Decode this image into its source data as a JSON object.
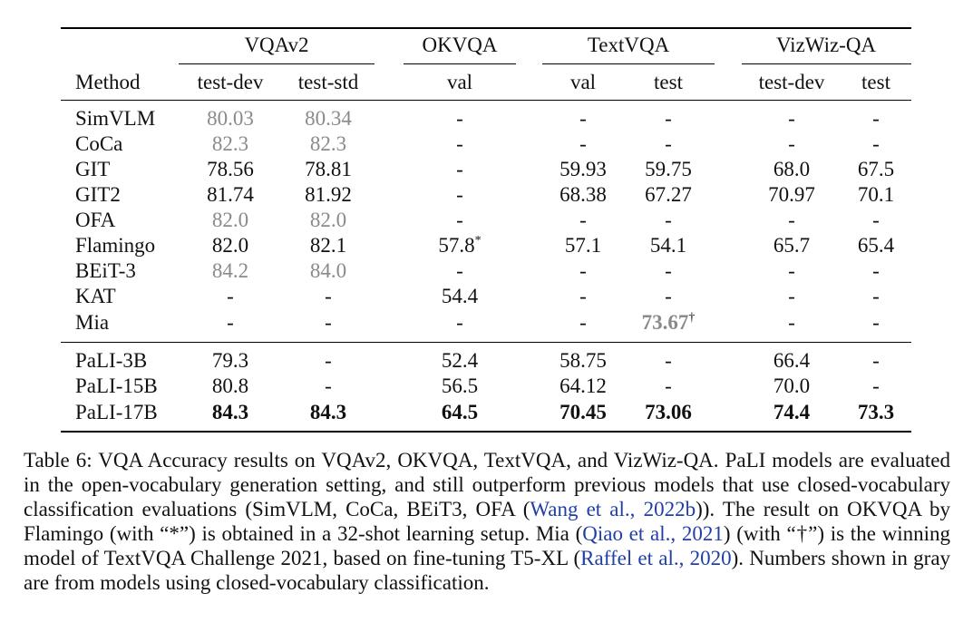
{
  "table": {
    "groups": [
      "VQAv2",
      "OKVQA",
      "TextVQA",
      "VizWiz-QA"
    ],
    "method_header": "Method",
    "subheaders": [
      "test-dev",
      "test-std",
      "val",
      "val",
      "test",
      "test-dev",
      "test"
    ],
    "rows": [
      {
        "method": "SimVLM",
        "cells": [
          {
            "v": "80.03",
            "s": "gray"
          },
          {
            "v": "80.34",
            "s": "gray"
          },
          {
            "v": "-"
          },
          {
            "v": "-"
          },
          {
            "v": "-"
          },
          {
            "v": "-"
          },
          {
            "v": "-"
          }
        ]
      },
      {
        "method": "CoCa",
        "cells": [
          {
            "v": "82.3",
            "s": "gray"
          },
          {
            "v": "82.3",
            "s": "gray"
          },
          {
            "v": "-"
          },
          {
            "v": "-"
          },
          {
            "v": "-"
          },
          {
            "v": "-"
          },
          {
            "v": "-"
          }
        ]
      },
      {
        "method": "GIT",
        "cells": [
          {
            "v": "78.56"
          },
          {
            "v": "78.81"
          },
          {
            "v": "-"
          },
          {
            "v": "59.93"
          },
          {
            "v": "59.75"
          },
          {
            "v": "68.0"
          },
          {
            "v": "67.5"
          }
        ]
      },
      {
        "method": "GIT2",
        "cells": [
          {
            "v": "81.74"
          },
          {
            "v": "81.92"
          },
          {
            "v": "-"
          },
          {
            "v": "68.38"
          },
          {
            "v": "67.27"
          },
          {
            "v": "70.97"
          },
          {
            "v": "70.1"
          }
        ]
      },
      {
        "method": "OFA",
        "cells": [
          {
            "v": "82.0",
            "s": "gray"
          },
          {
            "v": "82.0",
            "s": "gray"
          },
          {
            "v": "-"
          },
          {
            "v": "-"
          },
          {
            "v": "-"
          },
          {
            "v": "-"
          },
          {
            "v": "-"
          }
        ]
      },
      {
        "method": "Flamingo",
        "cells": [
          {
            "v": "82.0"
          },
          {
            "v": "82.1"
          },
          {
            "v": "57.8",
            "sup": "*"
          },
          {
            "v": "57.1"
          },
          {
            "v": "54.1"
          },
          {
            "v": "65.7"
          },
          {
            "v": "65.4"
          }
        ]
      },
      {
        "method": "BEiT-3",
        "cells": [
          {
            "v": "84.2",
            "s": "gray"
          },
          {
            "v": "84.0",
            "s": "gray"
          },
          {
            "v": "-"
          },
          {
            "v": "-"
          },
          {
            "v": "-"
          },
          {
            "v": "-"
          },
          {
            "v": "-"
          }
        ]
      },
      {
        "method": "KAT",
        "cells": [
          {
            "v": "-"
          },
          {
            "v": "-"
          },
          {
            "v": "54.4"
          },
          {
            "v": "-"
          },
          {
            "v": "-"
          },
          {
            "v": "-"
          },
          {
            "v": "-"
          }
        ]
      },
      {
        "method": "Mia",
        "cells": [
          {
            "v": "-"
          },
          {
            "v": "-"
          },
          {
            "v": "-"
          },
          {
            "v": "-"
          },
          {
            "v": "73.67",
            "s": "graybold",
            "sup": "†"
          },
          {
            "v": "-"
          },
          {
            "v": "-"
          }
        ]
      },
      {
        "method": "PaLI-3B",
        "cells": [
          {
            "v": "79.3"
          },
          {
            "v": "-"
          },
          {
            "v": "52.4"
          },
          {
            "v": "58.75"
          },
          {
            "v": "-"
          },
          {
            "v": "66.4"
          },
          {
            "v": "-"
          }
        ]
      },
      {
        "method": "PaLI-15B",
        "cells": [
          {
            "v": "80.8"
          },
          {
            "v": "-"
          },
          {
            "v": "56.5"
          },
          {
            "v": "64.12"
          },
          {
            "v": "-"
          },
          {
            "v": "70.0"
          },
          {
            "v": "-"
          }
        ]
      },
      {
        "method": "PaLI-17B",
        "cells": [
          {
            "v": "84.3",
            "s": "bold"
          },
          {
            "v": "84.3",
            "s": "bold"
          },
          {
            "v": "64.5",
            "s": "bold"
          },
          {
            "v": "70.45",
            "s": "bold"
          },
          {
            "v": "73.06",
            "s": "bold"
          },
          {
            "v": "74.4",
            "s": "bold"
          },
          {
            "v": "73.3",
            "s": "bold"
          }
        ]
      }
    ]
  },
  "caption": [
    {
      "t": "Table 6: VQA Accuracy results on VQAv2, OKVQA, TextVQA, and VizWiz-QA. PaLI models are evaluated in the open-vocabulary generation setting, and still outperform previous models that use closed-vocabulary classification evaluations (SimVLM, CoCa, BEiT3, OFA ("
    },
    {
      "t": "Wang et al.,",
      "link": true
    },
    {
      "t": " "
    },
    {
      "t": "2022b",
      "link": true
    },
    {
      "t": ")). The result on OKVQA by Flamingo (with “*”) is obtained in a 32-shot learning setup. Mia ("
    },
    {
      "t": "Qiao et al.,",
      "link": true
    },
    {
      "t": " "
    },
    {
      "t": "2021",
      "link": true
    },
    {
      "t": ") (with “†”) is the winning model of TextVQA Challenge 2021, based on fine-tuning T5-XL ("
    },
    {
      "t": "Raffel et al.,",
      "link": true
    },
    {
      "t": " "
    },
    {
      "t": "2020",
      "link": true
    },
    {
      "t": ").  Numbers shown in gray are from models using closed-vocabulary classification."
    }
  ],
  "colors": {
    "gray": "#8a8a8a",
    "link": "#1f3fa6"
  }
}
